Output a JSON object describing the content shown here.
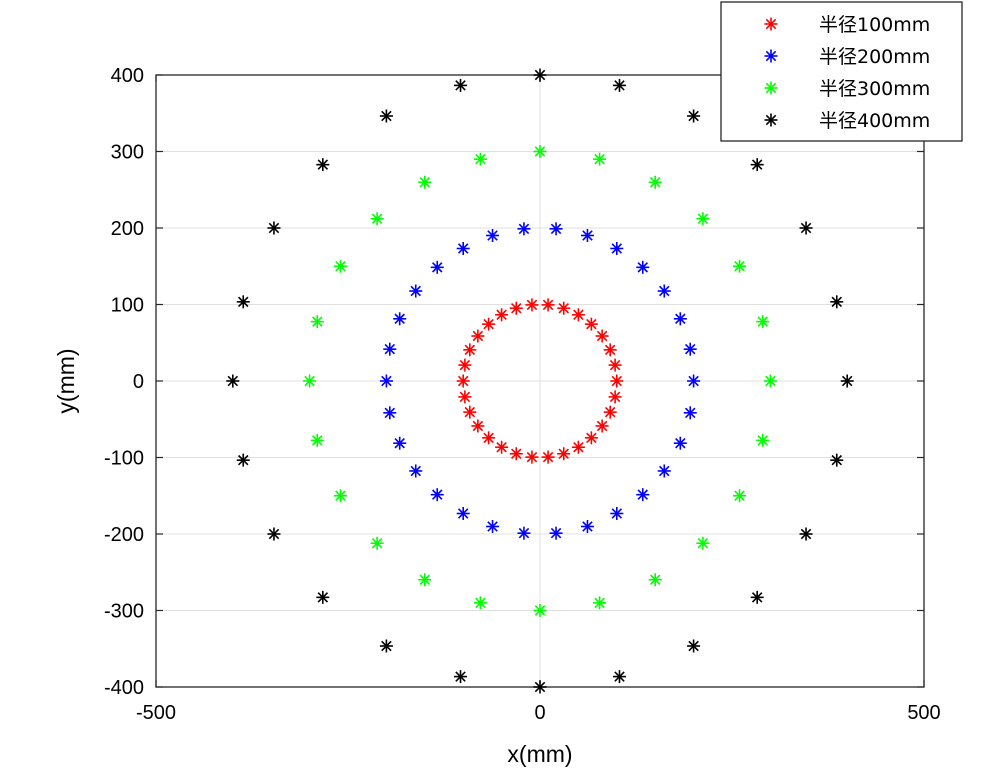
{
  "chart_data": {
    "type": "scatter",
    "xlabel": "x(mm)",
    "ylabel": "y(mm)",
    "xlim": [
      -500,
      500
    ],
    "ylim": [
      -400,
      400
    ],
    "xticks": [
      -500,
      0,
      500
    ],
    "yticks": [
      400,
      300,
      200,
      100,
      0,
      -100,
      -200,
      -300,
      -400
    ],
    "xtick_labels": [
      "-500",
      "0",
      "500"
    ],
    "ytick_labels": [
      "400",
      "300",
      "200",
      "100",
      "0",
      "-100",
      "-200",
      "-300",
      "-400"
    ],
    "grid": true,
    "marker": "asterisk",
    "legend_position": "top-right",
    "series": [
      {
        "name": "半径100mm",
        "color": "#ff0000",
        "x": [
          100,
          97.8,
          91.4,
          80.9,
          66.9,
          50,
          30.9,
          10.5,
          -10.5,
          -30.9,
          -50,
          -66.9,
          -80.9,
          -91.4,
          -97.8,
          -100,
          -97.8,
          -91.4,
          -80.9,
          -66.9,
          -50,
          -30.9,
          -10.5,
          10.5,
          30.9,
          50,
          66.9,
          80.9,
          91.4,
          97.8
        ],
        "y": [
          0,
          20.8,
          40.7,
          58.8,
          74.3,
          86.6,
          95.1,
          99.5,
          99.5,
          95.1,
          86.6,
          74.3,
          58.8,
          40.7,
          20.8,
          0,
          -20.8,
          -40.7,
          -58.8,
          -74.3,
          -86.6,
          -95.1,
          -99.5,
          -99.5,
          -95.1,
          -86.6,
          -74.3,
          -58.8,
          -40.7,
          -20.8
        ]
      },
      {
        "name": "半径200mm",
        "color": "#0000ff",
        "x": [
          200,
          195.6,
          182.7,
          161.8,
          133.8,
          100,
          61.8,
          20.9,
          -20.9,
          -61.8,
          -100,
          -133.8,
          -161.8,
          -182.7,
          -195.6,
          -200,
          -195.6,
          -182.7,
          -161.8,
          -133.8,
          -100,
          -61.8,
          -20.9,
          20.9,
          61.8,
          100,
          133.8,
          161.8,
          182.7,
          195.6
        ],
        "y": [
          0,
          41.6,
          81.3,
          117.6,
          148.6,
          173.2,
          190.2,
          198.9,
          198.9,
          190.2,
          173.2,
          148.6,
          117.6,
          81.3,
          41.6,
          0,
          -41.6,
          -81.3,
          -117.6,
          -148.6,
          -173.2,
          -190.2,
          -198.9,
          -198.9,
          -190.2,
          -173.2,
          -148.6,
          -117.6,
          -81.3,
          -41.6
        ]
      },
      {
        "name": "半径300mm",
        "color": "#00ff00",
        "x": [
          300,
          290,
          259.8,
          212.1,
          150,
          77.6,
          0,
          -77.6,
          -150,
          -212.1,
          -259.8,
          -290,
          -300,
          -290,
          -259.8,
          -212.1,
          -150,
          -77.6,
          0,
          77.6,
          150,
          212.1,
          259.8,
          290
        ],
        "y": [
          0,
          77.6,
          150,
          212.1,
          259.8,
          290,
          300,
          290,
          259.8,
          212.1,
          150,
          77.6,
          0,
          -77.6,
          -150,
          -212.1,
          -259.8,
          -290,
          -300,
          -290,
          -259.8,
          -212.1,
          -150,
          -77.6
        ]
      },
      {
        "name": "半径400mm",
        "color": "#000000",
        "x": [
          400,
          386.4,
          346.4,
          282.8,
          200,
          103.5,
          0,
          -103.5,
          -200,
          -282.8,
          -346.4,
          -386.4,
          -400,
          -386.4,
          -346.4,
          -282.8,
          -200,
          -103.5,
          0,
          103.5,
          200,
          282.8,
          346.4,
          386.4
        ],
        "y": [
          0,
          103.5,
          200,
          282.8,
          346.4,
          386.4,
          400,
          386.4,
          346.4,
          282.8,
          200,
          103.5,
          0,
          -103.5,
          -200,
          -282.8,
          -346.4,
          -386.4,
          -400,
          -386.4,
          -346.4,
          -282.8,
          -200,
          -103.5
        ]
      }
    ]
  }
}
